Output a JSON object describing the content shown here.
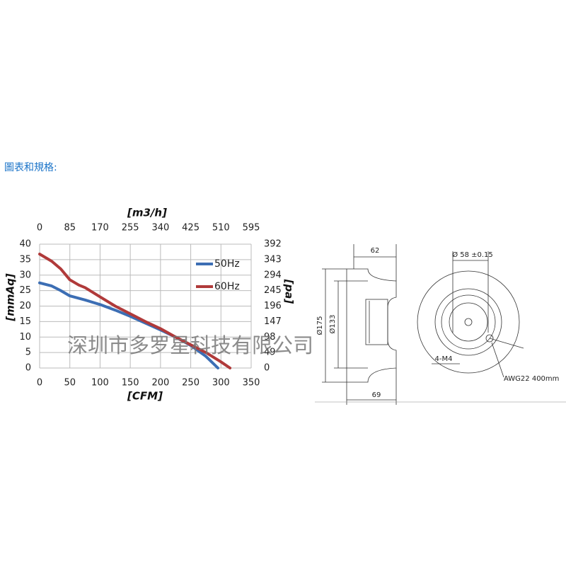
{
  "header": {
    "title": "圖表和規格:"
  },
  "watermark": "深圳市多罗星科技有限公司",
  "chart_data": {
    "type": "line",
    "x_label": "[CFM]",
    "x2_label": "[m3/h]",
    "y_label": "[mmAq]",
    "y2_label": "[pa]",
    "xlim": [
      0,
      350
    ],
    "xticks": [
      0,
      50,
      100,
      150,
      200,
      250,
      300,
      350
    ],
    "x2lim": [
      0,
      595
    ],
    "x2ticks": [
      0,
      85,
      170,
      255,
      340,
      425,
      510,
      595
    ],
    "ylim": [
      0,
      40
    ],
    "yticks": [
      0,
      5,
      10,
      15,
      20,
      25,
      30,
      35,
      40
    ],
    "y2lim": [
      0,
      392
    ],
    "y2ticks": [
      0,
      49,
      98,
      147,
      196,
      245,
      294,
      343,
      392
    ],
    "grid": true,
    "legend": "upper right",
    "series": [
      {
        "name": "50Hz",
        "color": "#3c6eb4",
        "x": [
          0,
          20,
          35,
          50,
          75,
          100,
          125,
          150,
          175,
          200,
          225,
          250,
          275,
          295
        ],
        "values": [
          27.5,
          26.5,
          25,
          23.3,
          22,
          20.5,
          18.7,
          16.7,
          14.5,
          12.3,
          10,
          7.3,
          3.8,
          0
        ]
      },
      {
        "name": "60Hz",
        "color": "#b03a3a",
        "x": [
          0,
          20,
          35,
          50,
          65,
          75,
          100,
          125,
          150,
          175,
          200,
          225,
          250,
          275,
          300,
          315
        ],
        "values": [
          36.8,
          34.5,
          32,
          28.5,
          26.8,
          26,
          23,
          20,
          17.5,
          15,
          12.7,
          10,
          7.5,
          5,
          2,
          0
        ]
      }
    ]
  },
  "drawing": {
    "labels": [
      "62",
      "Ø175",
      "Ø133",
      "69",
      "Ø 58 ±0.15",
      "4-M4",
      "AWG22 400mm"
    ]
  }
}
